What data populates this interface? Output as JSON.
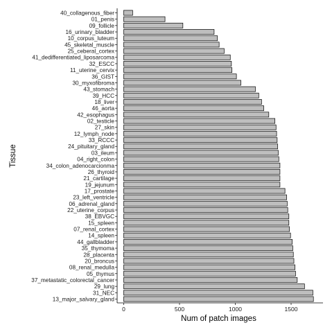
{
  "chart_data": {
    "type": "bar",
    "orientation": "horizontal",
    "xlabel": "Num of patch images",
    "ylabel": "Tissue",
    "xlim": [
      0,
      1750
    ],
    "xticks": [
      0,
      500,
      1000,
      1500
    ],
    "grid": false,
    "colors": {
      "bar_fill": "#bebebe",
      "bar_stroke": "#000000"
    },
    "categories": [
      "40_collagenous_fiber",
      "01_penis",
      "09_follicle",
      "16_urinary_bladder",
      "10_corpus_luteum",
      "45_skeletal_muscle",
      "25_ceberal_cortex",
      "41_dedifferentiated_liposarcoma",
      "32_ESCC",
      "11_uterine_cervix",
      "36_GIST",
      "30_myxofibroma",
      "43_stomach",
      "39_HCC",
      "18_liver",
      "46_aorta",
      "42_esophagus",
      "02_testicle",
      "27_skin",
      "12_lymph_node",
      "33_RCCC",
      "24_pituitary_gland",
      "03_ileum",
      "04_right_colon",
      "34_colon_adenocarcionma",
      "26_thyroid",
      "21_cartilage",
      "19_jejunum",
      "17_prostate",
      "23_left_ventricle",
      "06_adrenal_gland",
      "22_uterine_corpus",
      "38_EBVGC",
      "15_spleen",
      "07_renal_cortex",
      "14_spleen",
      "44_gallbladder",
      "35_thymoma",
      "28_placenta",
      "20_broncus",
      "08_renal_medulla",
      "05_thymus",
      "37_metastatic_colorectal_cancer",
      "29_lung",
      "31_NEC",
      "13_major_salvary_gland"
    ],
    "values": [
      80,
      370,
      530,
      810,
      840,
      855,
      900,
      955,
      965,
      970,
      1010,
      1050,
      1180,
      1210,
      1235,
      1255,
      1300,
      1355,
      1365,
      1370,
      1375,
      1380,
      1385,
      1390,
      1400,
      1400,
      1400,
      1400,
      1445,
      1460,
      1465,
      1470,
      1480,
      1480,
      1485,
      1495,
      1510,
      1515,
      1520,
      1525,
      1535,
      1540,
      1555,
      1620,
      1695,
      1700
    ]
  }
}
